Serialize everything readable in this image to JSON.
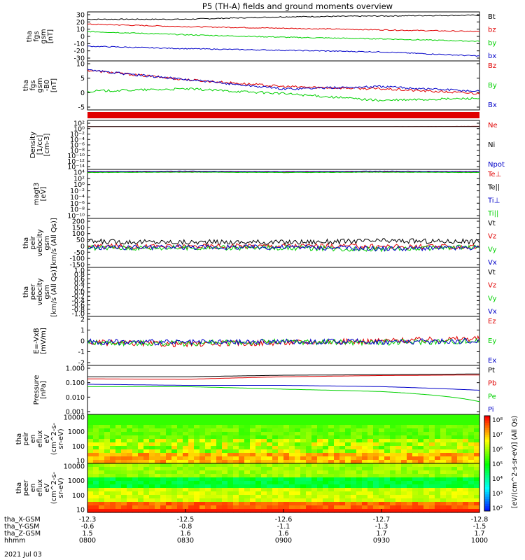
{
  "title": "P5 (TH-A) fields and ground moments overview",
  "colors": {
    "black": "#000000",
    "red": "#e00000",
    "green": "#00d000",
    "blue": "#0000c8"
  },
  "panels": [
    {
      "key": "fgs_gsm",
      "ylabel": [
        "tha",
        "fgs",
        "gsm",
        "[nT]"
      ],
      "ticks": [
        "30",
        "20",
        "10",
        "0",
        "-10",
        "-20",
        "-30"
      ],
      "ylim": [
        -30,
        30
      ],
      "legend": [
        {
          "text": "Bt",
          "color": "black"
        },
        {
          "text": "bz",
          "color": "red"
        },
        {
          "text": "by",
          "color": "green"
        },
        {
          "text": "bx",
          "color": "blue"
        }
      ]
    },
    {
      "key": "fgs_gse",
      "ylabel": [
        "tha",
        "fgs",
        "gsm",
        "-B0",
        "[nT]"
      ],
      "ticks": [
        "10",
        "5",
        "0",
        "-5"
      ],
      "ylim": [
        -7,
        14
      ],
      "legend": [
        {
          "text": "Bz",
          "color": "red"
        },
        {
          "text": "By",
          "color": "green"
        },
        {
          "text": "Bx",
          "color": "blue"
        }
      ]
    },
    {
      "key": "density",
      "ylabel": [
        "Density",
        "[1/cc]",
        "[cm-3]"
      ],
      "ticks": [
        "10²",
        "10⁰",
        "10⁻²",
        "10⁻⁴",
        "10⁻⁶",
        "10⁻⁸",
        "10⁻¹⁰",
        "10⁻¹²",
        "10⁻¹⁴"
      ],
      "ylim": [
        -14,
        2
      ],
      "legend": [
        {
          "text": "Ne",
          "color": "red"
        },
        {
          "text": "Ni",
          "color": "black"
        },
        {
          "text": "Npot",
          "color": "blue"
        }
      ]
    },
    {
      "key": "temp",
      "ylabel": [
        "magt3",
        "[eV]"
      ],
      "ticks": [
        "10⁴",
        "10²",
        "10⁰",
        "10⁻²",
        "10⁻⁴",
        "10⁻⁶",
        "10⁻⁸",
        "10⁻¹⁰"
      ],
      "ylim": [
        -10,
        4
      ],
      "legend": [
        {
          "text": "Te⊥",
          "color": "red"
        },
        {
          "text": "Te||",
          "color": "black"
        },
        {
          "text": "Ti⊥",
          "color": "blue"
        },
        {
          "text": "Ti||",
          "color": "green"
        }
      ]
    },
    {
      "key": "vi",
      "ylabel": [
        "tha",
        "peir",
        "velocity",
        "gsm",
        "[km/s (All Qs)]"
      ],
      "ticks": [
        "200",
        "150",
        "100",
        "50",
        "0",
        "-50",
        "-100",
        "-150"
      ],
      "ylim": [
        -150,
        200
      ],
      "legend": [
        {
          "text": "Vt",
          "color": "black"
        },
        {
          "text": "Vz",
          "color": "red"
        },
        {
          "text": "Vy",
          "color": "green"
        },
        {
          "text": "Vx",
          "color": "blue"
        }
      ]
    },
    {
      "key": "ve",
      "ylabel": [
        "tha",
        "peer",
        "velocity",
        "gsm",
        "[km/s (All Qs)]"
      ],
      "ticks": [
        "1.0",
        "0.8",
        "0.6",
        "0.4",
        "0.2",
        "0.0",
        "-0.2",
        "-0.4",
        "-0.6",
        "-0.8",
        "-1.0"
      ],
      "ylim": [
        -1,
        1
      ],
      "legend": [
        {
          "text": "Vt",
          "color": "black"
        },
        {
          "text": "Vz",
          "color": "red"
        },
        {
          "text": "Vy",
          "color": "green"
        },
        {
          "text": "Vx",
          "color": "blue"
        }
      ]
    },
    {
      "key": "efield",
      "ylabel": [
        "E=-VxB",
        "[mV/m]"
      ],
      "ticks": [
        "2",
        "1",
        "0",
        "-1",
        "-2"
      ],
      "ylim": [
        -3,
        3
      ],
      "legend": [
        {
          "text": "Ez",
          "color": "red"
        },
        {
          "text": "Ey",
          "color": "green"
        },
        {
          "text": "Ex",
          "color": "blue"
        }
      ]
    },
    {
      "key": "pressure",
      "ylabel": [
        "Pressure",
        "[nPa]"
      ],
      "ticks": [
        "1.000",
        "0.100",
        "0.010",
        "0.001"
      ],
      "ylim": [
        -3,
        0
      ],
      "legend": [
        {
          "text": "Pt",
          "color": "black"
        },
        {
          "text": "Pb",
          "color": "red"
        },
        {
          "text": "Pe",
          "color": "green"
        },
        {
          "text": "Pi",
          "color": "blue"
        }
      ]
    },
    {
      "key": "ion_spec",
      "ylabel": [
        "tha",
        "peir",
        "en",
        "eflux",
        "eV",
        "(cm^2-s-",
        "sr-eV)"
      ],
      "ticks": [
        "10000",
        "1000",
        "100",
        "10"
      ],
      "ylim": [
        1,
        4
      ],
      "legend": []
    },
    {
      "key": "ele_spec",
      "ylabel": [
        "tha",
        "peer",
        "en",
        "eflux",
        "eV",
        "(cm^2-s-",
        "sr-eV)"
      ],
      "ticks": [
        "10000",
        "1000",
        "100",
        "10"
      ],
      "ylim": [
        1,
        4
      ],
      "legend": []
    }
  ],
  "colorbar": {
    "ticks": [
      "10⁸",
      "10⁷",
      "10⁶",
      "10⁵",
      "10⁴",
      "10³",
      "10²"
    ],
    "label": "[eV/(cm^2-s-sr-eV)] (All Qs)"
  },
  "xaxis": {
    "rows": [
      {
        "label": "tha_X-GSM",
        "values": [
          "-12.3",
          "-12.5",
          "-12.6",
          "-12.7",
          "-12.8"
        ]
      },
      {
        "label": "tha_Y-GSM",
        "values": [
          "-0.6",
          "-0.8",
          "-1.1",
          "-1.3",
          "-1.5"
        ]
      },
      {
        "label": "tha_Z-GSM",
        "values": [
          "1.5",
          "1.6",
          "1.6",
          "1.7",
          "1.7"
        ]
      },
      {
        "label": "hhmm",
        "values": [
          "0800",
          "0830",
          "0900",
          "0930",
          "1000"
        ]
      }
    ],
    "date": "2021 Jul 03"
  },
  "chart_data": {
    "type": "line",
    "x": [
      "0800",
      "0830",
      "0900",
      "0930",
      "1000"
    ],
    "xlim": [
      "0800",
      "1000"
    ],
    "series_by_panel": {
      "fgs_gsm": [
        {
          "name": "Bt",
          "values": [
            21,
            21,
            24,
            25,
            26
          ]
        },
        {
          "name": "bz",
          "values": [
            15,
            12,
            10,
            8,
            6
          ]
        },
        {
          "name": "by",
          "values": [
            6,
            2,
            -1,
            -3,
            -6
          ]
        },
        {
          "name": "bx",
          "values": [
            -12,
            -15,
            -17,
            -19,
            -24
          ]
        }
      ],
      "fgs_gse": [
        {
          "name": "Bz",
          "values": [
            10,
            6,
            3,
            2,
            0
          ]
        },
        {
          "name": "By",
          "values": [
            1,
            2,
            0,
            -3,
            -2
          ]
        },
        {
          "name": "Bx",
          "values": [
            10,
            6,
            2,
            3,
            1
          ]
        }
      ],
      "density": [
        {
          "name": "Ne",
          "values": [
            1,
            1,
            1,
            1,
            1.2
          ]
        },
        {
          "name": "Ni",
          "values": [
            1,
            1,
            1,
            1,
            1
          ]
        }
      ],
      "temp": [
        {
          "name": "Te⊥",
          "values": [
            3.2,
            3.3,
            3.2,
            3.3,
            3.2
          ]
        },
        {
          "name": "Ti⊥",
          "values": [
            3.4,
            3.5,
            3.4,
            3.5,
            3.4
          ]
        },
        {
          "name": "Ti||",
          "values": [
            3.1,
            3.2,
            3.1,
            3.2,
            3.1
          ]
        }
      ],
      "vi": [
        {
          "name": "Vt",
          "values": [
            35,
            30,
            30,
            40,
            35
          ]
        },
        {
          "name": "Vz",
          "values": [
            0,
            0,
            5,
            0,
            -5
          ]
        },
        {
          "name": "Vy",
          "values": [
            -10,
            -10,
            -10,
            -20,
            -5
          ]
        },
        {
          "name": "Vx",
          "values": [
            -10,
            -5,
            -5,
            -15,
            -10
          ]
        }
      ],
      "efield": [
        {
          "name": "Ez",
          "values": [
            -0.2,
            -0.4,
            -0.2,
            0,
            0.3
          ]
        },
        {
          "name": "Ey",
          "values": [
            -0.2,
            -0.3,
            -0.1,
            -0.2,
            0
          ]
        },
        {
          "name": "Ex",
          "values": [
            -0.1,
            -0.2,
            -0.1,
            -0.1,
            0
          ]
        }
      ],
      "pressure": [
        {
          "name": "Pt",
          "values": [
            0.2,
            0.2,
            0.25,
            0.27,
            0.3
          ]
        },
        {
          "name": "Pb",
          "values": [
            0.15,
            0.14,
            0.2,
            0.24,
            0.26
          ]
        },
        {
          "name": "Pe",
          "values": [
            0.05,
            0.05,
            0.035,
            0.025,
            0.006
          ]
        },
        {
          "name": "Pi",
          "values": [
            0.07,
            0.06,
            0.06,
            0.05,
            0.03
          ]
        }
      ]
    }
  }
}
